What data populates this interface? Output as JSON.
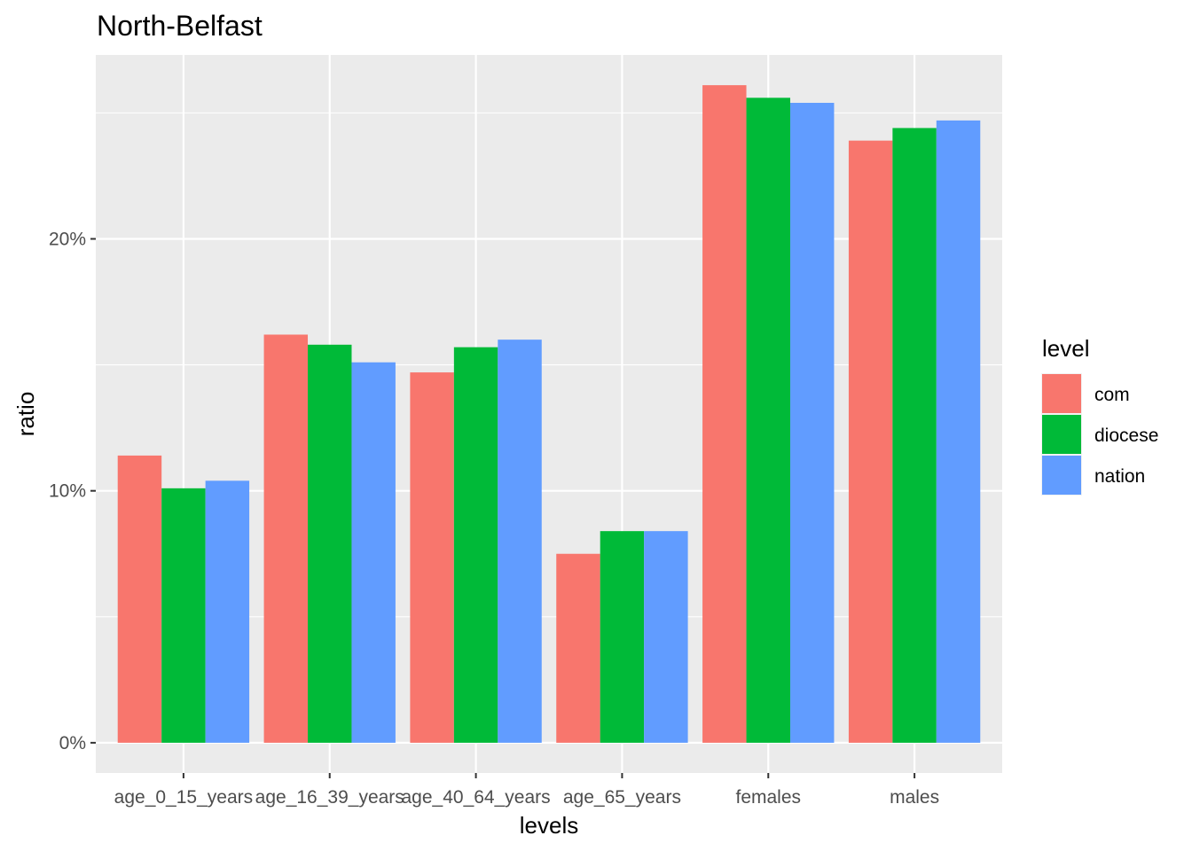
{
  "chart_data": {
    "type": "bar",
    "title": "North-Belfast",
    "xlabel": "levels",
    "ylabel": "ratio",
    "categories": [
      "age_0_15_years",
      "age_16_39_years",
      "age_40_64_years",
      "age_65_years",
      "females",
      "males"
    ],
    "series": [
      {
        "name": "com",
        "values": [
          0.114,
          0.162,
          0.147,
          0.075,
          0.261,
          0.239
        ]
      },
      {
        "name": "diocese",
        "values": [
          0.101,
          0.158,
          0.157,
          0.084,
          0.256,
          0.244
        ]
      },
      {
        "name": "nation",
        "values": [
          0.104,
          0.151,
          0.16,
          0.084,
          0.254,
          0.247
        ]
      }
    ],
    "y_ticks": [
      0,
      0.1,
      0.2
    ],
    "y_tick_labels": [
      "0%",
      "10%",
      "20%"
    ],
    "ylim": [
      -0.012,
      0.273
    ],
    "legend": {
      "title": "level",
      "position": "right"
    },
    "grid": true,
    "colors": {
      "com": "#F8766D",
      "diocese": "#00BA38",
      "nation": "#619CFF",
      "panel": "#EBEBEB",
      "grid": "#FFFFFF"
    }
  }
}
